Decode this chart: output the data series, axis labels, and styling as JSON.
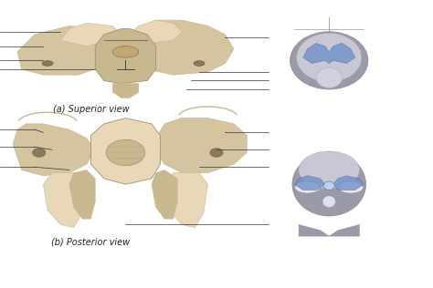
{
  "background_color": "#ffffff",
  "fig_width": 4.74,
  "fig_height": 3.16,
  "dpi": 100,
  "label_a": "(a) Superior view",
  "label_b": "(b) Posterior view",
  "bone_color": "#d4c4a0",
  "bone_color2": "#c8b890",
  "bone_color3": "#e8d8b8",
  "skull_bg": "#b0b0b8",
  "skull_highlight": "#7090c8",
  "line_color": "#333333",
  "label_fontsize": 7,
  "annotation_fontsize": 5.5
}
